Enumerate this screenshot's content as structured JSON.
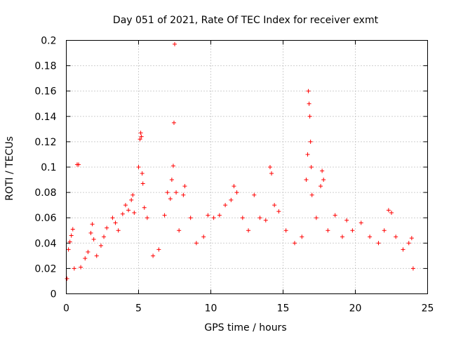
{
  "chart_data": {
    "type": "scatter",
    "title": "Day 051 of 2021, Rate Of TEC Index for receiver exmt",
    "xlabel": "GPS time / hours",
    "ylabel": "ROTI / TECUs",
    "xlim": [
      0,
      25
    ],
    "ylim": [
      0,
      0.2
    ],
    "x_ticks": [
      "0",
      "5",
      "10",
      "15",
      "20",
      "25"
    ],
    "y_ticks": [
      "0",
      "0.02",
      "0.04",
      "0.06",
      "0.08",
      "0.1",
      "0.12",
      "0.14",
      "0.16",
      "0.18",
      "0.2"
    ],
    "grid": true,
    "marker": "+",
    "series": [
      {
        "name": "ROTI",
        "color": "#ff0000",
        "sampled_points": [
          [
            0.05,
            0.012
          ],
          [
            0.15,
            0.035
          ],
          [
            0.25,
            0.041
          ],
          [
            0.35,
            0.046
          ],
          [
            0.45,
            0.051
          ],
          [
            0.55,
            0.02
          ],
          [
            0.75,
            0.102
          ],
          [
            0.85,
            0.102
          ],
          [
            1.0,
            0.021
          ],
          [
            1.3,
            0.028
          ],
          [
            1.5,
            0.033
          ],
          [
            1.7,
            0.048
          ],
          [
            1.8,
            0.055
          ],
          [
            1.9,
            0.043
          ],
          [
            2.1,
            0.03
          ],
          [
            2.4,
            0.038
          ],
          [
            2.6,
            0.045
          ],
          [
            2.8,
            0.052
          ],
          [
            3.2,
            0.06
          ],
          [
            3.4,
            0.056
          ],
          [
            3.6,
            0.05
          ],
          [
            3.9,
            0.063
          ],
          [
            4.1,
            0.07
          ],
          [
            4.3,
            0.066
          ],
          [
            4.5,
            0.074
          ],
          [
            4.6,
            0.078
          ],
          [
            4.7,
            0.064
          ],
          [
            5.0,
            0.1
          ],
          [
            5.1,
            0.122
          ],
          [
            5.15,
            0.127
          ],
          [
            5.2,
            0.124
          ],
          [
            5.25,
            0.095
          ],
          [
            5.3,
            0.087
          ],
          [
            5.4,
            0.068
          ],
          [
            5.6,
            0.06
          ],
          [
            6.0,
            0.03
          ],
          [
            6.4,
            0.035
          ],
          [
            6.8,
            0.062
          ],
          [
            7.0,
            0.08
          ],
          [
            7.2,
            0.075
          ],
          [
            7.3,
            0.09
          ],
          [
            7.4,
            0.101
          ],
          [
            7.45,
            0.135
          ],
          [
            7.5,
            0.197
          ],
          [
            7.6,
            0.08
          ],
          [
            7.8,
            0.05
          ],
          [
            8.1,
            0.078
          ],
          [
            8.2,
            0.085
          ],
          [
            8.6,
            0.06
          ],
          [
            9.0,
            0.04
          ],
          [
            9.5,
            0.045
          ],
          [
            9.8,
            0.062
          ],
          [
            10.2,
            0.06
          ],
          [
            10.6,
            0.062
          ],
          [
            11.0,
            0.07
          ],
          [
            11.4,
            0.074
          ],
          [
            11.6,
            0.085
          ],
          [
            11.8,
            0.08
          ],
          [
            12.2,
            0.06
          ],
          [
            12.6,
            0.05
          ],
          [
            13.0,
            0.078
          ],
          [
            13.4,
            0.06
          ],
          [
            13.8,
            0.058
          ],
          [
            14.1,
            0.1
          ],
          [
            14.2,
            0.095
          ],
          [
            14.4,
            0.07
          ],
          [
            14.7,
            0.065
          ],
          [
            15.2,
            0.05
          ],
          [
            15.8,
            0.04
          ],
          [
            16.3,
            0.045
          ],
          [
            16.6,
            0.09
          ],
          [
            16.7,
            0.11
          ],
          [
            16.75,
            0.16
          ],
          [
            16.8,
            0.15
          ],
          [
            16.85,
            0.14
          ],
          [
            16.9,
            0.12
          ],
          [
            16.95,
            0.1
          ],
          [
            17.0,
            0.078
          ],
          [
            17.3,
            0.06
          ],
          [
            17.6,
            0.085
          ],
          [
            17.7,
            0.097
          ],
          [
            17.8,
            0.09
          ],
          [
            18.1,
            0.05
          ],
          [
            18.6,
            0.062
          ],
          [
            19.1,
            0.045
          ],
          [
            19.4,
            0.058
          ],
          [
            19.8,
            0.05
          ],
          [
            20.4,
            0.056
          ],
          [
            21.0,
            0.045
          ],
          [
            21.6,
            0.04
          ],
          [
            22.0,
            0.05
          ],
          [
            22.3,
            0.066
          ],
          [
            22.5,
            0.064
          ],
          [
            22.8,
            0.045
          ],
          [
            23.3,
            0.035
          ],
          [
            23.7,
            0.04
          ],
          [
            23.9,
            0.044
          ],
          [
            24.0,
            0.02
          ]
        ]
      }
    ]
  }
}
